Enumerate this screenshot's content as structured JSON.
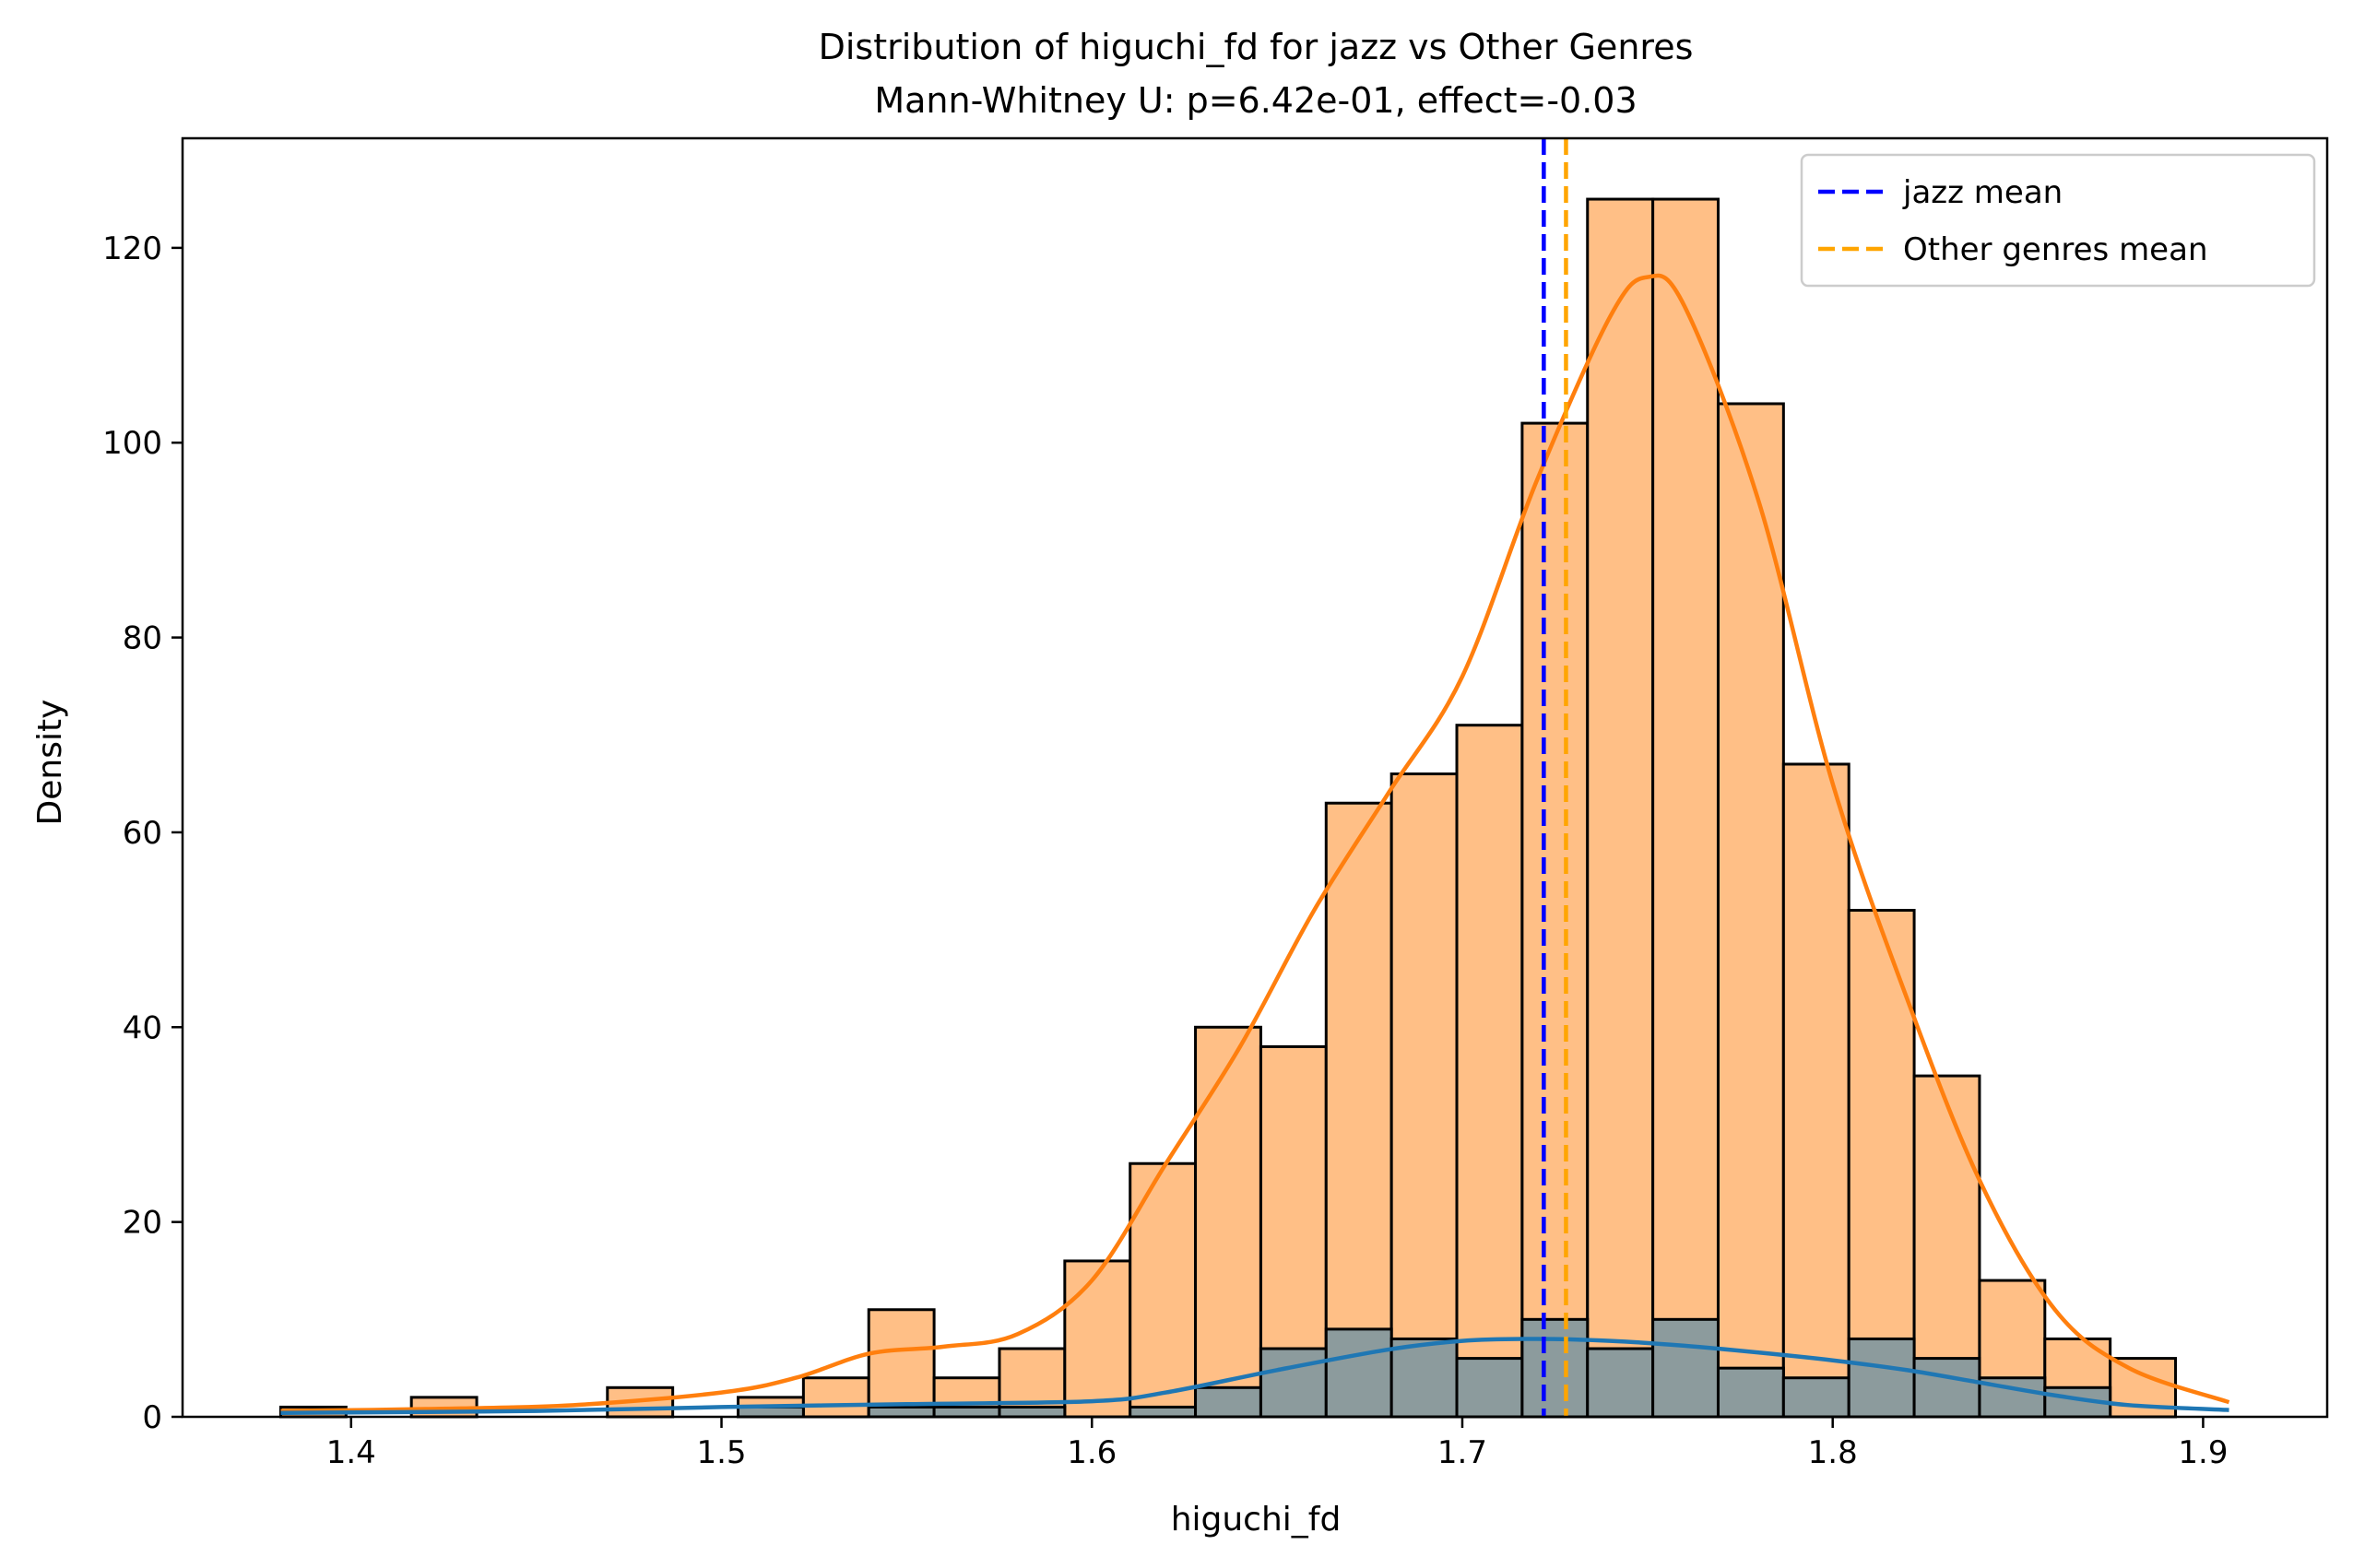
{
  "chart_data": {
    "type": "bar",
    "title": "Distribution of higuchi_fd for jazz vs Other Genres",
    "subtitle": "Mann-Whitney U: p=6.42e-01, effect=-0.03",
    "xlabel": "higuchi_fd",
    "ylabel": "Density",
    "xlim": [
      1.3545,
      1.9335
    ],
    "ylim": [
      0,
      131.25
    ],
    "xticks": [
      1.4,
      1.5,
      1.6,
      1.7,
      1.8,
      1.9
    ],
    "xtick_labels": [
      "1.4",
      "1.5",
      "1.6",
      "1.7",
      "1.8",
      "1.9"
    ],
    "yticks": [
      0,
      20,
      40,
      60,
      80,
      100,
      120
    ],
    "ytick_labels": [
      "0",
      "20",
      "40",
      "60",
      "80",
      "100",
      "120"
    ],
    "grid": false,
    "legend_position": "top-right",
    "bins": {
      "start": 1.381,
      "width": 0.01764,
      "count": 30
    },
    "series": [
      {
        "key": "other",
        "color": "#ff7f0e",
        "fill_color": "#ffbf86",
        "values": [
          1,
          0,
          2,
          0,
          0,
          3,
          0,
          2,
          4,
          11,
          4,
          7,
          16,
          26,
          40,
          38,
          63,
          66,
          71,
          102,
          125,
          125,
          104,
          67,
          52,
          35,
          14,
          8,
          6,
          0
        ],
        "kde": [
          [
            1.381,
            0.6
          ],
          [
            1.42,
            0.8
          ],
          [
            1.46,
            1.2
          ],
          [
            1.5,
            2.5
          ],
          [
            1.52,
            4.0
          ],
          [
            1.54,
            6.5
          ],
          [
            1.56,
            7.2
          ],
          [
            1.58,
            8.5
          ],
          [
            1.6,
            14.0
          ],
          [
            1.62,
            26.0
          ],
          [
            1.64,
            38.0
          ],
          [
            1.66,
            52.0
          ],
          [
            1.68,
            64.0
          ],
          [
            1.7,
            76.0
          ],
          [
            1.72,
            96.0
          ],
          [
            1.74,
            113.0
          ],
          [
            1.75,
            117.0
          ],
          [
            1.76,
            114.0
          ],
          [
            1.78,
            94.0
          ],
          [
            1.8,
            65.0
          ],
          [
            1.82,
            43.0
          ],
          [
            1.84,
            24.0
          ],
          [
            1.86,
            11.0
          ],
          [
            1.88,
            5.0
          ],
          [
            1.907,
            1.5
          ]
        ]
      },
      {
        "key": "jazz",
        "color": "#1f77b4",
        "fill_color": "#8c9b9d",
        "values": [
          0,
          0,
          0,
          0,
          0,
          0,
          0,
          1,
          0,
          1,
          1,
          1,
          0,
          1,
          3,
          7,
          9,
          8,
          6,
          10,
          7,
          10,
          5,
          4,
          8,
          6,
          4,
          3,
          0,
          0
        ],
        "kde": [
          [
            1.381,
            0.4
          ],
          [
            1.45,
            0.6
          ],
          [
            1.5,
            1.0
          ],
          [
            1.55,
            1.3
          ],
          [
            1.6,
            1.6
          ],
          [
            1.62,
            2.5
          ],
          [
            1.65,
            4.8
          ],
          [
            1.68,
            6.9
          ],
          [
            1.7,
            7.8
          ],
          [
            1.72,
            8.0
          ],
          [
            1.74,
            7.8
          ],
          [
            1.76,
            7.3
          ],
          [
            1.78,
            6.6
          ],
          [
            1.8,
            5.8
          ],
          [
            1.82,
            4.8
          ],
          [
            1.84,
            3.5
          ],
          [
            1.86,
            2.2
          ],
          [
            1.88,
            1.2
          ],
          [
            1.907,
            0.7
          ]
        ]
      }
    ],
    "mean_lines": [
      {
        "label": "jazz mean",
        "x": 1.722,
        "color": "#0000ff"
      },
      {
        "label": "Other genres mean",
        "x": 1.728,
        "color": "#ffa500"
      }
    ],
    "bar_edge_color": "#000000"
  }
}
